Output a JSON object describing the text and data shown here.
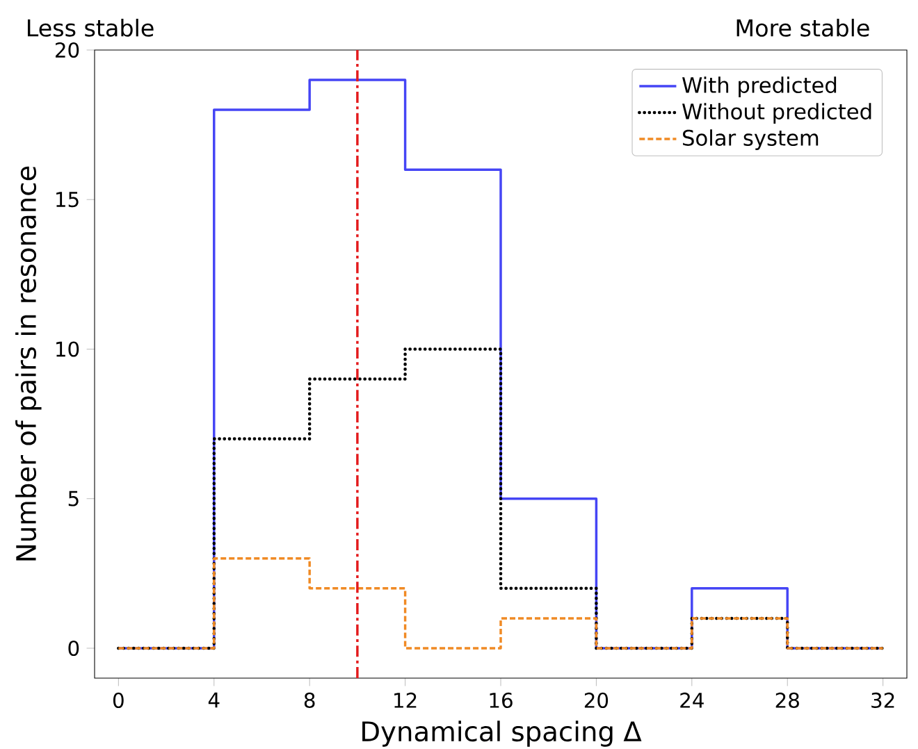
{
  "chart_data": {
    "type": "step",
    "xlabel": "Dynamical spacing Δ",
    "ylabel": "Number of pairs in resonance",
    "annotations": [
      "Less stable",
      "More stable"
    ],
    "x": [
      0,
      4,
      8,
      12,
      16,
      20,
      24,
      28,
      32
    ],
    "series": [
      {
        "name": "With predicted",
        "color": "#4545f5",
        "line_style": "solid",
        "values": [
          0,
          18,
          19,
          16,
          5,
          0,
          2,
          0,
          0
        ]
      },
      {
        "name": "Without predicted",
        "color": "#000000",
        "line_style": "dotted",
        "values": [
          0,
          7,
          9,
          10,
          2,
          0,
          1,
          0,
          0
        ]
      },
      {
        "name": "Solar system",
        "color": "#f08a24",
        "line_style": "dashed",
        "values": [
          0,
          3,
          2,
          0,
          1,
          0,
          1,
          0,
          0
        ]
      }
    ],
    "ref_lines": [
      {
        "axis": "x",
        "value": 10,
        "color": "#e31a1c",
        "line_style": "dashdot"
      }
    ],
    "xlim": [
      -1,
      33
    ],
    "ylim": [
      -1,
      20
    ],
    "xticks": [
      0,
      4,
      8,
      12,
      16,
      20,
      24,
      28,
      32
    ],
    "yticks": [
      0,
      5,
      10,
      15,
      20
    ],
    "legend": "top right"
  }
}
